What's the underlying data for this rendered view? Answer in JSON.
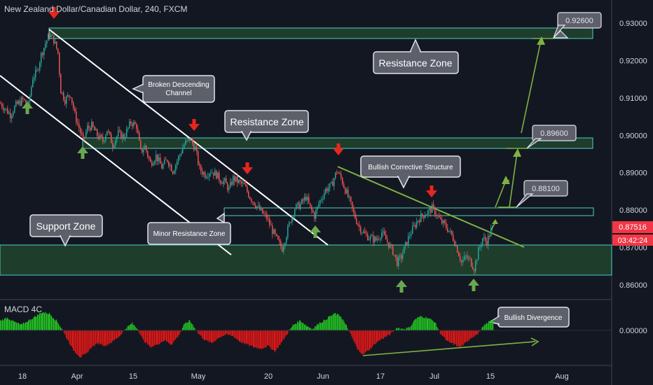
{
  "header": {
    "title": "New Zealand Dollar/Canadian Dollar, 240, FXCM"
  },
  "macd": {
    "label": "MACD 4C",
    "zero_label": "0.00000"
  },
  "colors": {
    "background": "#131722",
    "bull_candle": "#26a69a",
    "bear_candle": "#ef5350",
    "zone_fill": "#1e3d2b",
    "zone_border": "#4dd0c4",
    "arrow_green": "#6aa84f",
    "arrow_red": "#e8261e",
    "trendline": "#ffffff",
    "structure_line": "#7cb342",
    "macd_green": "#22c322",
    "macd_red": "#e01818",
    "current_price": "#f23645"
  },
  "callouts": {
    "resistance_top": "Resistance Zone",
    "resistance_mid": "Resistance Zone",
    "support": "Support Zone",
    "broken_channel_1": "Broken Descending",
    "broken_channel_2": "Channel",
    "minor_resistance": "Minor Resistance Zone",
    "bullish_structure": "Bullish Corrective Structure",
    "bullish_divergence": "Bullish Divergence"
  },
  "targets": [
    "0.92600",
    "0.89600",
    "0.88100"
  ],
  "current": {
    "price": "0.87516",
    "countdown": "03:42:24"
  },
  "chart_data": {
    "type": "candlestick",
    "title": "New Zealand Dollar/Canadian Dollar, 240, FXCM",
    "x_tick_labels": [
      "18",
      "Apr",
      "15",
      "May",
      "20",
      "Jun",
      "17",
      "Jul",
      "15",
      "Aug"
    ],
    "y_tick_labels": [
      "0.93000",
      "0.92000",
      "0.91000",
      "0.90000",
      "0.89000",
      "0.88000",
      "0.87000",
      "0.86000"
    ],
    "ylim": [
      0.8575,
      0.9348
    ],
    "zones": [
      {
        "label": "Resistance Zone",
        "low": 0.9262,
        "high": 0.9282
      },
      {
        "label": "Resistance Zone",
        "low": 0.8966,
        "high": 0.8993
      },
      {
        "label": "Minor Resistance Zone",
        "low": 0.8788,
        "high": 0.8807
      },
      {
        "label": "Support Zone",
        "low": 0.8625,
        "high": 0.8705
      }
    ],
    "key_points": [
      {
        "date": "Mar 23",
        "close": 0.927
      },
      {
        "date": "Apr 1",
        "close": 0.8985
      },
      {
        "date": "May 1",
        "close": 0.899
      },
      {
        "date": "May 23",
        "close": 0.8695
      },
      {
        "date": "Jun 4",
        "close": 0.891
      },
      {
        "date": "Jun 21",
        "close": 0.865
      },
      {
        "date": "Jul 1",
        "close": 0.8805
      },
      {
        "date": "Jul 10",
        "close": 0.8625
      },
      {
        "date": "Jul 15",
        "close": 0.87516
      }
    ],
    "projected_targets": [
      0.881,
      0.896,
      0.926
    ],
    "macd_zero": 0.0
  }
}
